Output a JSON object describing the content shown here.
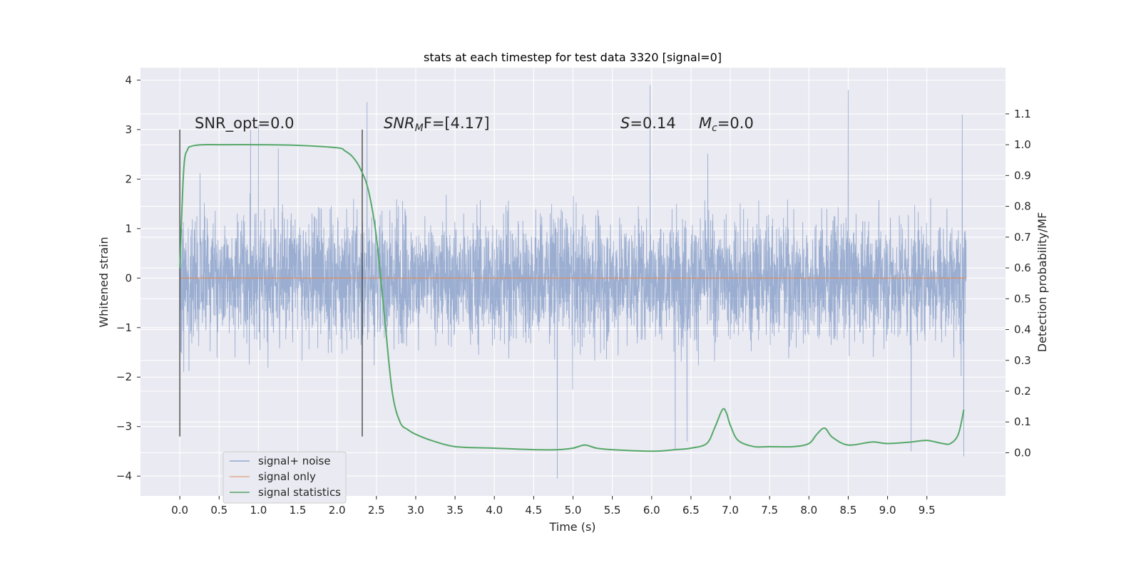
{
  "chart_data": {
    "type": "line",
    "title": "stats at each timestep for test data 3320 [signal=0]",
    "xlabel": "Time (s)",
    "ylabel_left": "Whitened strain",
    "ylabel_right": "Detection probability/MF",
    "xlim": [
      -0.5,
      10.5
    ],
    "ylim_left": [
      -4.4,
      4.25
    ],
    "ylim_right": [
      -0.14,
      1.25
    ],
    "x_ticks": [
      "0.0",
      "0.5",
      "1.0",
      "1.5",
      "2.0",
      "2.5",
      "3.0",
      "3.5",
      "4.0",
      "4.5",
      "5.0",
      "5.5",
      "6.0",
      "6.5",
      "7.0",
      "7.5",
      "8.0",
      "8.5",
      "9.0",
      "9.5"
    ],
    "y_left_ticks": [
      "−4",
      "−3",
      "−2",
      "−1",
      "0",
      "1",
      "2",
      "3",
      "4"
    ],
    "y_right_ticks": [
      "0.0",
      "0.1",
      "0.2",
      "0.3",
      "0.4",
      "0.5",
      "0.6",
      "0.7",
      "0.8",
      "0.9",
      "1.0",
      "1.1"
    ],
    "grid": true,
    "legend_position": "lower-left",
    "annotations": {
      "snr_opt": "SNR_opt=0.0",
      "snr_mf_main": "SNR",
      "snr_mf_sub": "M",
      "snr_mf_rest": "F=[4.17]",
      "s_main": "S",
      "s_rest": "=0.14",
      "mc_main": "M",
      "mc_sub": "c",
      "mc_rest": "=0.0"
    },
    "vertical_markers_x": [
      0.0,
      2.32
    ],
    "series": [
      {
        "name": "signal+ noise",
        "color": "#4c72b0",
        "axis": "left",
        "note": "dense noise, approx. ±1.2 core with spikes up to ~3.9 and down to ~-4.0",
        "x_range": [
          0.0,
          10.0
        ],
        "spikes": [
          [
            0.9,
            3.0
          ],
          [
            1.0,
            3.1
          ],
          [
            2.38,
            3.55
          ],
          [
            4.8,
            -4.05
          ],
          [
            5.98,
            3.9
          ],
          [
            6.3,
            -3.45
          ],
          [
            6.45,
            -3.3
          ],
          [
            8.5,
            3.8
          ],
          [
            9.3,
            -3.5
          ],
          [
            9.97,
            -3.6
          ],
          [
            9.95,
            3.3
          ]
        ]
      },
      {
        "name": "signal only",
        "color": "#dd8452",
        "axis": "left",
        "x": [
          0.0,
          10.0
        ],
        "values": [
          0.0,
          0.0
        ]
      },
      {
        "name": "signal statistics",
        "color": "#55a868",
        "axis": "right",
        "x": [
          0.0,
          0.05,
          0.1,
          0.15,
          0.2,
          0.3,
          0.5,
          1.0,
          1.5,
          2.0,
          2.1,
          2.2,
          2.3,
          2.4,
          2.5,
          2.6,
          2.7,
          2.8,
          2.9,
          3.0,
          3.2,
          3.5,
          4.0,
          4.5,
          4.8,
          5.0,
          5.15,
          5.3,
          5.5,
          6.0,
          6.3,
          6.5,
          6.7,
          6.8,
          6.9,
          6.95,
          7.0,
          7.1,
          7.3,
          7.5,
          7.8,
          8.0,
          8.1,
          8.2,
          8.3,
          8.5,
          8.8,
          9.0,
          9.3,
          9.5,
          9.7,
          9.8,
          9.9,
          9.97
        ],
        "values": [
          0.6,
          0.92,
          0.985,
          0.995,
          0.998,
          1.0,
          1.0,
          1.0,
          0.998,
          0.99,
          0.98,
          0.96,
          0.92,
          0.85,
          0.7,
          0.45,
          0.2,
          0.1,
          0.075,
          0.06,
          0.04,
          0.02,
          0.015,
          0.01,
          0.01,
          0.015,
          0.025,
          0.015,
          0.01,
          0.005,
          0.01,
          0.015,
          0.03,
          0.08,
          0.14,
          0.13,
          0.09,
          0.04,
          0.02,
          0.02,
          0.02,
          0.03,
          0.06,
          0.08,
          0.05,
          0.025,
          0.035,
          0.03,
          0.035,
          0.04,
          0.03,
          0.03,
          0.06,
          0.14
        ]
      }
    ]
  }
}
